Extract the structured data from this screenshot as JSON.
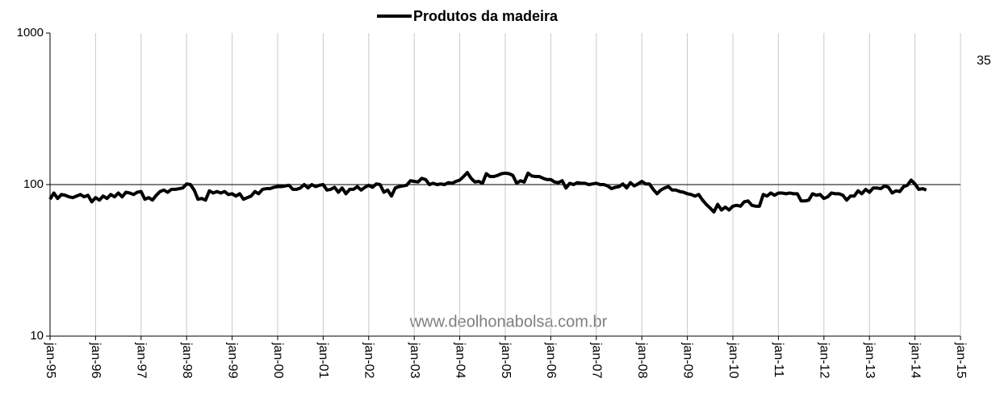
{
  "chart_data": {
    "type": "line",
    "title": "Produtos da madeira",
    "annotations": [
      "35",
      "www.deolhonabolsa.com.br"
    ],
    "log_y": true,
    "grid": true,
    "ylim": [
      10,
      1000
    ],
    "yticks": [
      10,
      100,
      1000
    ],
    "xlim": [
      "1995-01",
      "2015-01"
    ],
    "xticks": [
      {
        "value": "1995-01",
        "label": "jan-95"
      },
      {
        "value": "1996-01",
        "label": "jan-96"
      },
      {
        "value": "1997-01",
        "label": "jan-97"
      },
      {
        "value": "1998-01",
        "label": "jan-98"
      },
      {
        "value": "1999-01",
        "label": "jan-99"
      },
      {
        "value": "2000-01",
        "label": "jan-00"
      },
      {
        "value": "2001-01",
        "label": "jan-01"
      },
      {
        "value": "2002-01",
        "label": "jan-02"
      },
      {
        "value": "2003-01",
        "label": "jan-03"
      },
      {
        "value": "2004-01",
        "label": "jan-04"
      },
      {
        "value": "2005-01",
        "label": "jan-05"
      },
      {
        "value": "2006-01",
        "label": "jan-06"
      },
      {
        "value": "2007-01",
        "label": "jan-07"
      },
      {
        "value": "2008-01",
        "label": "jan-08"
      },
      {
        "value": "2009-01",
        "label": "jan-09"
      },
      {
        "value": "2010-01",
        "label": "jan-10"
      },
      {
        "value": "2011-01",
        "label": "jan-11"
      },
      {
        "value": "2012-01",
        "label": "jan-12"
      },
      {
        "value": "2013-01",
        "label": "jan-13"
      },
      {
        "value": "2014-01",
        "label": "jan-14"
      },
      {
        "value": "2015-01",
        "label": "jan-15"
      }
    ],
    "x": [
      "1995-01",
      "1995-02",
      "1995-03",
      "1995-04",
      "1995-05",
      "1995-06",
      "1995-07",
      "1995-08",
      "1995-09",
      "1995-10",
      "1995-11",
      "1995-12",
      "1996-01",
      "1996-02",
      "1996-03",
      "1996-04",
      "1996-05",
      "1996-06",
      "1996-07",
      "1996-08",
      "1996-09",
      "1996-10",
      "1996-11",
      "1996-12",
      "1997-01",
      "1997-02",
      "1997-03",
      "1997-04",
      "1997-05",
      "1997-06",
      "1997-07",
      "1997-08",
      "1997-09",
      "1997-10",
      "1997-11",
      "1997-12",
      "1998-01",
      "1998-02",
      "1998-03",
      "1998-04",
      "1998-05",
      "1998-06",
      "1998-07",
      "1998-08",
      "1998-09",
      "1998-10",
      "1998-11",
      "1998-12",
      "1999-01",
      "1999-02",
      "1999-03",
      "1999-04",
      "1999-05",
      "1999-06",
      "1999-07",
      "1999-08",
      "1999-09",
      "1999-10",
      "1999-11",
      "1999-12",
      "2000-01",
      "2000-02",
      "2000-03",
      "2000-04",
      "2000-05",
      "2000-06",
      "2000-07",
      "2000-08",
      "2000-09",
      "2000-10",
      "2000-11",
      "2000-12",
      "2001-01",
      "2001-02",
      "2001-03",
      "2001-04",
      "2001-05",
      "2001-06",
      "2001-07",
      "2001-08",
      "2001-09",
      "2001-10",
      "2001-11",
      "2001-12",
      "2002-01",
      "2002-02",
      "2002-03",
      "2002-04",
      "2002-05",
      "2002-06",
      "2002-07",
      "2002-08",
      "2002-09",
      "2002-10",
      "2002-11",
      "2002-12",
      "2003-01",
      "2003-02",
      "2003-03",
      "2003-04",
      "2003-05",
      "2003-06",
      "2003-07",
      "2003-08",
      "2003-09",
      "2003-10",
      "2003-11",
      "2003-12",
      "2004-01",
      "2004-02",
      "2004-03",
      "2004-04",
      "2004-05",
      "2004-06",
      "2004-07",
      "2004-08",
      "2004-09",
      "2004-10",
      "2004-11",
      "2004-12",
      "2005-01",
      "2005-02",
      "2005-03",
      "2005-04",
      "2005-05",
      "2005-06",
      "2005-07",
      "2005-08",
      "2005-09",
      "2005-10",
      "2005-11",
      "2005-12",
      "2006-01",
      "2006-02",
      "2006-03",
      "2006-04",
      "2006-05",
      "2006-06",
      "2006-07",
      "2006-08",
      "2006-09",
      "2006-10",
      "2006-11",
      "2006-12",
      "2007-01",
      "2007-02",
      "2007-03",
      "2007-04",
      "2007-05",
      "2007-06",
      "2007-07",
      "2007-08",
      "2007-09",
      "2007-10",
      "2007-11",
      "2007-12",
      "2008-01",
      "2008-02",
      "2008-03",
      "2008-04",
      "2008-05",
      "2008-06",
      "2008-07",
      "2008-08",
      "2008-09",
      "2008-10",
      "2008-11",
      "2008-12",
      "2009-01",
      "2009-02",
      "2009-03",
      "2009-04",
      "2009-05",
      "2009-06",
      "2009-07",
      "2009-08",
      "2009-09",
      "2009-10",
      "2009-11",
      "2009-12",
      "2010-01",
      "2010-02",
      "2010-03",
      "2010-04",
      "2010-05",
      "2010-06",
      "2010-07",
      "2010-08",
      "2010-09",
      "2010-10",
      "2010-11",
      "2010-12",
      "2011-01",
      "2011-02",
      "2011-03",
      "2011-04",
      "2011-05",
      "2011-06",
      "2011-07",
      "2011-08",
      "2011-09",
      "2011-10",
      "2011-11",
      "2011-12",
      "2012-01",
      "2012-02",
      "2012-03",
      "2012-04",
      "2012-05",
      "2012-06",
      "2012-07",
      "2012-08",
      "2012-09",
      "2012-10",
      "2012-11",
      "2012-12",
      "2013-01",
      "2013-02",
      "2013-03",
      "2013-04",
      "2013-05",
      "2013-06",
      "2013-07",
      "2013-08",
      "2013-09",
      "2013-10",
      "2013-11",
      "2013-12",
      "2014-01",
      "2014-02",
      "2014-03",
      "2014-04"
    ],
    "series": [
      {
        "name": "Produtos da madeira",
        "color": "#000000",
        "values": [
          80,
          88,
          81,
          86,
          85,
          83,
          82,
          84,
          86,
          83,
          85,
          77,
          82,
          79,
          84,
          81,
          86,
          83,
          88,
          83,
          89,
          88,
          86,
          89,
          90,
          80,
          82,
          79,
          85,
          90,
          92,
          89,
          93,
          93,
          94,
          95,
          101,
          100,
          92,
          80,
          81,
          79,
          91,
          88,
          90,
          88,
          90,
          86,
          87,
          84,
          87,
          80,
          82,
          84,
          90,
          87,
          93,
          94,
          94,
          96,
          97,
          97,
          98,
          99,
          93,
          93,
          95,
          100,
          95,
          100,
          97,
          99,
          100,
          92,
          93,
          96,
          89,
          95,
          87,
          93,
          93,
          97,
          92,
          96,
          99,
          96,
          101,
          100,
          89,
          92,
          84,
          95,
          97,
          98,
          99,
          106,
          105,
          104,
          110,
          108,
          100,
          102,
          100,
          101,
          100,
          103,
          102,
          105,
          107,
          113,
          120,
          110,
          104,
          105,
          102,
          118,
          113,
          113,
          115,
          118,
          119,
          118,
          115,
          102,
          106,
          104,
          119,
          114,
          113,
          113,
          110,
          108,
          108,
          104,
          103,
          106,
          95,
          102,
          100,
          103,
          102,
          102,
          100,
          101,
          102,
          100,
          100,
          98,
          94,
          96,
          97,
          101,
          95,
          103,
          98,
          101,
          105,
          101,
          101,
          93,
          87,
          92,
          95,
          97,
          92,
          92,
          90,
          89,
          87,
          86,
          84,
          86,
          79,
          74,
          70,
          66,
          74,
          68,
          71,
          68,
          72,
          73,
          72,
          77,
          78,
          73,
          72,
          72,
          86,
          84,
          88,
          85,
          88,
          88,
          87,
          88,
          87,
          87,
          78,
          78,
          79,
          87,
          85,
          86,
          81,
          83,
          88,
          87,
          87,
          85,
          79,
          84,
          84,
          91,
          87,
          93,
          89,
          95,
          95,
          94,
          98,
          96,
          88,
          91,
          90,
          97,
          99,
          107,
          101,
          93,
          94,
          92
        ]
      }
    ]
  }
}
